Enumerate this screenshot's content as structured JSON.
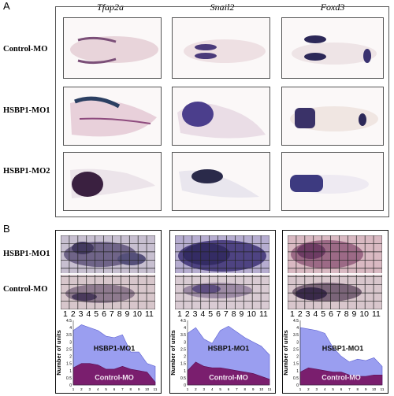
{
  "panel_a": {
    "letter": "A",
    "genes": [
      "Tfap2a",
      "Snail2",
      "Foxd3"
    ],
    "rows": [
      "Control-MO",
      "HSBP1-MO1",
      "HSBP1-MO2"
    ]
  },
  "panel_b": {
    "letter": "B",
    "rows": [
      "HSBP1-MO1",
      "Control-MO"
    ],
    "column_numbers": [
      "1",
      "2",
      "3",
      "4",
      "5",
      "6",
      "7",
      "8",
      "9",
      "10",
      "11"
    ],
    "ylabel": "Number of units",
    "colors": {
      "hsbp1_fill": "#9a9ef0",
      "control_fill": "#7a1e6e",
      "stain": "#3a2d6e"
    }
  },
  "chart_data": [
    {
      "type": "area",
      "xlabel": "",
      "ylabel": "Number of units",
      "x": [
        1,
        2,
        3,
        4,
        5,
        6,
        7,
        8,
        9,
        10,
        11
      ],
      "ylim": [
        0,
        4.5
      ],
      "yticks": [
        "0",
        "0.5",
        "1",
        "1.5",
        "2",
        "2.5",
        "3",
        "3.5",
        "4",
        "4.5"
      ],
      "series": [
        {
          "name": "HSBP1-MO1",
          "values": [
            3.8,
            4.2,
            4.0,
            3.8,
            3.4,
            3.3,
            3.5,
            2.3,
            2.3,
            1.5,
            1.3
          ]
        },
        {
          "name": "Control-MO",
          "values": [
            1.2,
            1.5,
            1.5,
            1.4,
            1.1,
            1.1,
            1.3,
            1.1,
            1.0,
            0.9,
            0.2
          ]
        }
      ]
    },
    {
      "type": "area",
      "xlabel": "",
      "ylabel": "Number of units",
      "x": [
        1,
        2,
        3,
        4,
        5,
        6,
        7,
        8,
        9,
        10,
        11
      ],
      "ylim": [
        0,
        4.5
      ],
      "yticks": [
        "0",
        "0.5",
        "1",
        "1.5",
        "2",
        "2.5",
        "3",
        "3.5",
        "4",
        "4.5"
      ],
      "series": [
        {
          "name": "HSBP1-MO1",
          "values": [
            3.6,
            4.0,
            3.2,
            2.9,
            3.8,
            4.1,
            3.7,
            3.3,
            3.0,
            2.7,
            2.1
          ]
        },
        {
          "name": "Control-MO",
          "values": [
            1.0,
            1.6,
            1.3,
            1.2,
            1.2,
            1.1,
            1.0,
            0.9,
            0.8,
            0.6,
            0.4
          ]
        }
      ]
    },
    {
      "type": "area",
      "xlabel": "",
      "ylabel": "Number of units",
      "x": [
        1,
        2,
        3,
        4,
        5,
        6,
        7,
        8,
        9,
        10,
        11
      ],
      "ylim": [
        0,
        4.5
      ],
      "yticks": [
        "0",
        "0.5",
        "1",
        "1.5",
        "2",
        "2.5",
        "3",
        "3.5",
        "4",
        "4.5"
      ],
      "series": [
        {
          "name": "HSBP1-MO1",
          "values": [
            4.0,
            3.9,
            3.8,
            3.6,
            2.6,
            2.0,
            1.6,
            1.8,
            1.7,
            1.9,
            1.3
          ]
        },
        {
          "name": "Control-MO",
          "values": [
            0.9,
            1.2,
            1.1,
            1.0,
            0.9,
            0.9,
            0.7,
            0.6,
            0.6,
            0.7,
            0.7
          ]
        }
      ]
    }
  ]
}
